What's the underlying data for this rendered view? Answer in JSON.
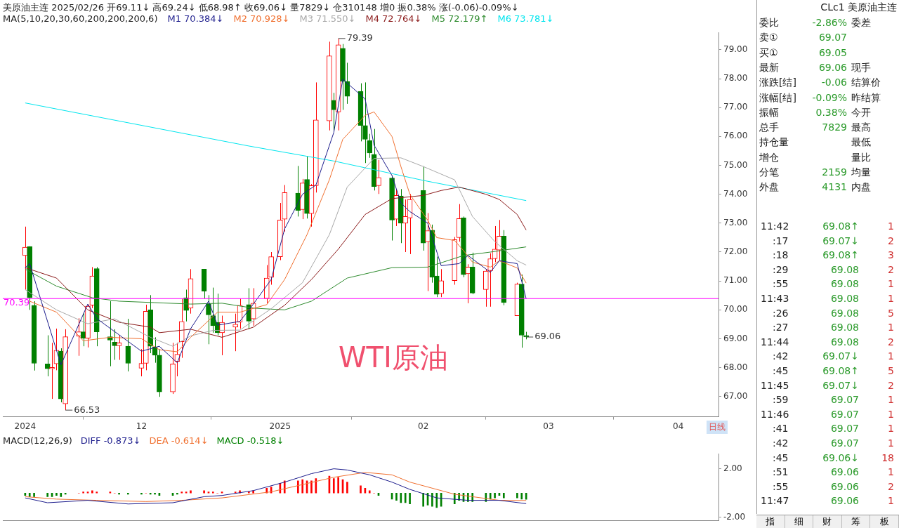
{
  "chart_data": [
    {
      "type": "candlestick",
      "title": "美原油主连 2025/02/26 开69.11↓ 高69.24↓ 低68.98↑ 收69.06↓ 量7829↓ 仓310148 增0 振0.38% 涨(-0.06)-0.09%↓",
      "legend_title": "MA(5,10,20,30,60,200,200,200,6)",
      "legend": "top left",
      "x": [
        "2024-11-06",
        "2024-11-07",
        "2024-11-08",
        "2024-11-11",
        "2024-11-12",
        "2024-11-13",
        "2024-11-14",
        "2024-11-15",
        "2024-11-18",
        "2024-11-19",
        "2024-11-20",
        "2024-11-21",
        "2024-11-22",
        "2024-11-25",
        "2024-11-26",
        "2024-11-27",
        "2024-11-29",
        "2024-12-02",
        "2024-12-03",
        "2024-12-04",
        "2024-12-05",
        "2024-12-06",
        "2024-12-09",
        "2024-12-10",
        "2024-12-11",
        "2024-12-12",
        "2024-12-13",
        "2024-12-16",
        "2024-12-17",
        "2024-12-18",
        "2024-12-19",
        "2024-12-20",
        "2024-12-23",
        "2024-12-24",
        "2024-12-26",
        "2024-12-27",
        "2024-12-30",
        "2024-12-31",
        "2025-01-02",
        "2025-01-03",
        "2025-01-06",
        "2025-01-07",
        "2025-01-08",
        "2025-01-09",
        "2025-01-10",
        "2025-01-13",
        "2025-01-14",
        "2025-01-15",
        "2025-01-16",
        "2025-01-17",
        "2025-01-20",
        "2025-01-21",
        "2025-01-22",
        "2025-01-23",
        "2025-01-24",
        "2025-01-27",
        "2025-01-28",
        "2025-01-29",
        "2025-01-30",
        "2025-01-31",
        "2025-02-03",
        "2025-02-04",
        "2025-02-05",
        "2025-02-06",
        "2025-02-07",
        "2025-02-10",
        "2025-02-11",
        "2025-02-12",
        "2025-02-13",
        "2025-02-14",
        "2025-02-17",
        "2025-02-18",
        "2025-02-19",
        "2025-02-20",
        "2025-02-21",
        "2025-02-24",
        "2025-02-25",
        "2025-02-26"
      ],
      "ohlc": [
        [
          71.88,
          72.88,
          70.7,
          72.17
        ],
        [
          72.19,
          72.2,
          70.0,
          70.42
        ],
        [
          70.16,
          70.3,
          67.9,
          68.15
        ],
        [
          68.13,
          69.12,
          67.7,
          67.96
        ],
        [
          67.96,
          68.86,
          66.92,
          68.01
        ],
        [
          68.13,
          69.35,
          67.91,
          68.6
        ],
        [
          68.57,
          68.67,
          66.8,
          66.92
        ],
        [
          66.75,
          69.33,
          66.53,
          69.07
        ],
        [
          69.09,
          69.71,
          68.41,
          69.24
        ],
        [
          69.24,
          69.92,
          68.74,
          69.02
        ],
        [
          69.02,
          70.18,
          68.7,
          70.13
        ],
        [
          70.16,
          71.48,
          70.06,
          71.17
        ],
        [
          71.43,
          71.48,
          68.74,
          69.24
        ],
        [
          69.07,
          70.3,
          68.05,
          68.95
        ],
        [
          68.88,
          69.33,
          68.27,
          68.76
        ],
        [
          68.76,
          69.12,
          68.27,
          68.86
        ],
        [
          68.74,
          69.69,
          67.87,
          68.15
        ],
        [
          67.98,
          68.64,
          67.7,
          68.15
        ],
        [
          68.15,
          70.18,
          67.91,
          69.95
        ],
        [
          70.0,
          70.51,
          68.5,
          68.74
        ],
        [
          68.72,
          69.05,
          68.17,
          68.43
        ],
        [
          68.43,
          68.64,
          66.99,
          67.16
        ],
        [
          67.16,
          68.86,
          67.09,
          68.13
        ],
        [
          68.22,
          68.86,
          67.7,
          68.46
        ],
        [
          68.9,
          70.39,
          68.34,
          69.6
        ],
        [
          70.42,
          70.7,
          69.6,
          69.98
        ],
        [
          70.06,
          71.41,
          69.87,
          71.08
        ],
        [
          71.41,
          71.41,
          70.39,
          70.65
        ],
        [
          70.21,
          70.51,
          68.81,
          69.83
        ],
        [
          69.8,
          70.77,
          69.21,
          69.45
        ],
        [
          69.57,
          70.56,
          69.12,
          69.21
        ],
        [
          69.21,
          69.8,
          68.43,
          69.57
        ],
        [
          69.4,
          69.87,
          68.57,
          69.5
        ],
        [
          69.57,
          70.39,
          69.35,
          70.16
        ],
        [
          70.18,
          70.75,
          69.33,
          69.61
        ],
        [
          69.69,
          70.75,
          69.45,
          70.23
        ],
        [
          70.39,
          71.55,
          70.23,
          71.1
        ],
        [
          71.13,
          72.0,
          70.87,
          71.84
        ],
        [
          71.84,
          73.7,
          71.72,
          73.11
        ],
        [
          73.14,
          74.32,
          72.71,
          74.06
        ],
        [
          74.04,
          74.98,
          73.23,
          73.44
        ],
        [
          73.47,
          74.53,
          73.14,
          74.39
        ],
        [
          74.51,
          75.31,
          73.16,
          73.33
        ],
        [
          73.33,
          74.35,
          72.88,
          74.3
        ],
        [
          74.3,
          77.87,
          74.06,
          76.57
        ],
        [
          76.54,
          79.28,
          76.21,
          78.79
        ],
        [
          77.25,
          77.51,
          76.21,
          76.92
        ],
        [
          76.85,
          79.39,
          76.21,
          79.17
        ],
        [
          79.05,
          79.2,
          76.92,
          77.91
        ],
        [
          77.91,
          78.55,
          77.13,
          77.39
        ],
        [
          77.56,
          77.84,
          75.83,
          76.38
        ],
        [
          76.38,
          77.87,
          75.08,
          75.9
        ],
        [
          75.86,
          76.09,
          75.26,
          75.43
        ],
        [
          75.38,
          76.26,
          74.13,
          74.27
        ],
        [
          74.3,
          75.19,
          74.01,
          74.58
        ],
        [
          74.56,
          74.65,
          72.4,
          73.11
        ],
        [
          73.14,
          74.18,
          72.9,
          73.96
        ],
        [
          73.94,
          74.18,
          72.31,
          73.0
        ],
        [
          73.0,
          73.82,
          72.0,
          73.23
        ],
        [
          73.18,
          74.01,
          71.93,
          73.82
        ],
        [
          74.13,
          74.97,
          72.05,
          72.31
        ],
        [
          72.36,
          73.35,
          70.65,
          72.74
        ],
        [
          72.76,
          72.95,
          70.94,
          71.13
        ],
        [
          71.17,
          71.84,
          70.44,
          70.54
        ],
        [
          70.56,
          71.41,
          70.44,
          71.01
        ],
        [
          71.01,
          72.52,
          70.87,
          72.43
        ],
        [
          72.5,
          73.66,
          72.36,
          73.16
        ],
        [
          73.18,
          73.23,
          71.13,
          71.22
        ],
        [
          71.25,
          71.58,
          70.23,
          71.48
        ],
        [
          71.48,
          71.98,
          70.54,
          70.58
        ],
        [
          70.7,
          71.41,
          70.11,
          71.34
        ],
        [
          71.36,
          71.96,
          70.11,
          71.77
        ],
        [
          71.77,
          72.9,
          71.65,
          72.1
        ],
        [
          72.07,
          73.11,
          71.72,
          72.55
        ],
        [
          72.55,
          72.76,
          70.16,
          70.25
        ],
        [
          69.8,
          70.94,
          69.8,
          70.89
        ],
        [
          70.89,
          71.22,
          68.69,
          69.12
        ],
        [
          69.11,
          69.24,
          68.98,
          69.06
        ]
      ],
      "colors": [
        "#ff0000",
        "#008000",
        "#008000",
        "#008000",
        "#ff0000",
        "#ff0000",
        "#008000",
        "#ff0000",
        "#ff0000",
        "#008000",
        "#ff0000",
        "#ff0000",
        "#008000",
        "#008000",
        "#008000",
        "#ff0000",
        "#008000",
        "#ff0000",
        "#ff0000",
        "#008000",
        "#008000",
        "#008000",
        "#ff0000",
        "#ff0000",
        "#ff0000",
        "#008000",
        "#ff0000",
        "#008000",
        "#008000",
        "#008000",
        "#008000",
        "#ff0000",
        "#ff0000",
        "#ff0000",
        "#008000",
        "#ff0000",
        "#ff0000",
        "#ff0000",
        "#ff0000",
        "#ff0000",
        "#008000",
        "#ff0000",
        "#008000",
        "#ff0000",
        "#ff0000",
        "#ff0000",
        "#008000",
        "#ff0000",
        "#008000",
        "#008000",
        "#008000",
        "#008000",
        "#008000",
        "#008000",
        "#ff0000",
        "#008000",
        "#ff0000",
        "#008000",
        "#ff0000",
        "#ff0000",
        "#008000",
        "#ff0000",
        "#008000",
        "#008000",
        "#ff0000",
        "#ff0000",
        "#ff0000",
        "#008000",
        "#ff0000",
        "#008000",
        "#ff0000",
        "#ff0000",
        "#ff0000",
        "#ff0000",
        "#008000",
        "#ff0000",
        "#008000",
        "#008000"
      ],
      "series": [
        {
          "name": "M1 70.384↓",
          "type": "line",
          "color": "#1c1c8c",
          "x": [
            "2024-11-06",
            "2024-11-07",
            "2024-11-14",
            "2024-11-20",
            "2024-11-22",
            "2024-12-02",
            "2024-12-06",
            "2024-12-10",
            "2024-12-13",
            "2024-12-17",
            "2024-12-19",
            "2024-12-24",
            "2024-12-27",
            "2024-12-31",
            "2025-01-03",
            "2025-01-07",
            "2025-01-10",
            "2025-01-14",
            "2025-01-16",
            "2025-01-21",
            "2025-01-23",
            "2025-01-27",
            "2025-01-29",
            "2025-01-31",
            "2025-02-04",
            "2025-02-07",
            "2025-02-11",
            "2025-02-13",
            "2025-02-18",
            "2025-02-20",
            "2025-02-24",
            "2025-02-26"
          ],
          "values": [
            71.46,
            71.6,
            68.1,
            70.2,
            69.7,
            68.57,
            68.74,
            68.17,
            69.35,
            70.3,
            69.47,
            69.6,
            70.2,
            71.05,
            72.8,
            74.0,
            74.32,
            76.14,
            77.98,
            77.3,
            75.7,
            74.65,
            73.7,
            73.4,
            73.0,
            71.53,
            71.6,
            71.88,
            71.3,
            71.7,
            71.6,
            70.384
          ]
        },
        {
          "name": "M2 70.928↓",
          "type": "line",
          "color": "#f07030",
          "x": [
            "2024-11-07",
            "2024-11-13",
            "2024-11-19",
            "2024-11-25",
            "2024-12-02",
            "2024-12-06",
            "2024-12-10",
            "2024-12-13",
            "2024-12-19",
            "2024-12-24",
            "2024-12-30",
            "2025-01-03",
            "2025-01-08",
            "2025-01-13",
            "2025-01-16",
            "2025-01-21",
            "2025-01-23",
            "2025-01-27",
            "2025-01-29",
            "2025-01-31",
            "2025-02-04",
            "2025-02-06",
            "2025-02-10",
            "2025-02-12",
            "2025-02-14",
            "2025-02-18",
            "2025-02-20",
            "2025-02-24",
            "2025-02-26"
          ],
          "values": [
            70.3,
            69.92,
            68.93,
            69.05,
            69.0,
            68.62,
            68.55,
            69.05,
            69.92,
            69.92,
            70.18,
            71.05,
            72.6,
            74.5,
            75.9,
            76.73,
            76.85,
            76.0,
            74.96,
            74.0,
            73.1,
            72.5,
            72.4,
            72.05,
            71.65,
            71.48,
            71.7,
            71.45,
            70.928
          ]
        },
        {
          "name": "M3 71.550↓",
          "type": "line",
          "color": "#a8a8a8",
          "x": [
            "2024-11-06",
            "2024-11-13",
            "2024-11-20",
            "2024-11-26",
            "2024-12-04",
            "2024-12-09",
            "2024-12-13",
            "2024-12-18",
            "2024-12-24",
            "2024-12-31",
            "2025-01-07",
            "2025-01-13",
            "2025-01-17",
            "2025-01-23",
            "2025-01-29",
            "2025-02-03",
            "2025-02-10",
            "2025-02-14",
            "2025-02-19",
            "2025-02-24",
            "2025-02-26"
          ],
          "values": [
            70.7,
            70.0,
            69.52,
            69.69,
            69.05,
            68.74,
            69.1,
            69.29,
            69.3,
            70.04,
            70.94,
            72.6,
            74.25,
            75.24,
            75.26,
            74.96,
            74.5,
            73.23,
            72.36,
            71.7,
            71.55
          ]
        },
        {
          "name": "M4 72.764↓",
          "type": "line",
          "color": "#8b1a1a",
          "x": [
            "2024-11-06",
            "2024-11-13",
            "2024-11-20",
            "2024-11-27",
            "2024-12-04",
            "2024-12-06",
            "2024-12-13",
            "2024-12-20",
            "2024-12-27",
            "2025-01-03",
            "2025-01-09",
            "2025-01-15",
            "2025-01-21",
            "2025-01-27",
            "2025-02-03",
            "2025-02-07",
            "2025-02-11",
            "2025-02-17",
            "2025-02-20",
            "2025-02-24",
            "2025-02-26"
          ],
          "values": [
            71.46,
            71.1,
            70.0,
            69.57,
            69.4,
            69.21,
            69.33,
            69.05,
            69.4,
            70.16,
            71.05,
            72.1,
            73.3,
            73.85,
            73.96,
            74.13,
            74.25,
            74.0,
            73.82,
            73.3,
            72.764
          ]
        },
        {
          "name": "M5 72.179↑",
          "type": "line",
          "color": "#2e8b2e",
          "x": [
            "2024-11-06",
            "2024-11-13",
            "2024-11-21",
            "2024-11-27",
            "2024-12-05",
            "2024-12-13",
            "2024-12-20",
            "2024-12-27",
            "2025-01-03",
            "2025-01-09",
            "2025-01-13",
            "2025-01-17",
            "2025-01-27",
            "2025-02-04",
            "2025-02-12",
            "2025-02-18",
            "2025-02-26"
          ],
          "values": [
            71.41,
            70.82,
            70.42,
            70.3,
            70.25,
            70.2,
            70.23,
            70.06,
            70.0,
            70.3,
            70.7,
            71.1,
            71.46,
            71.48,
            71.88,
            72.0,
            72.179
          ]
        },
        {
          "name": "M6 73.781↓",
          "type": "line",
          "color": "#00e5ee",
          "x": [
            "2024-11-06",
            "2024-12-26",
            "2025-01-14",
            "2025-02-03",
            "2025-02-26"
          ],
          "values": [
            77.16,
            75.67,
            75.15,
            74.48,
            73.781
          ]
        }
      ],
      "xlim": [
        "2024-11-01",
        "2025-04-10"
      ],
      "xticks": [
        {
          "value": "2024-11-06",
          "label": "2024"
        },
        {
          "value": "2024-12-02",
          "label": "12"
        },
        {
          "value": "2025-01-02",
          "label": "2025"
        },
        {
          "value": "2025-02-03",
          "label": "02"
        },
        {
          "value": "2025-03-03",
          "label": "03"
        },
        {
          "value": "2025-04-01",
          "label": "04"
        }
      ],
      "ylim": [
        66.3,
        79.6
      ],
      "yticks": [
        {
          "value": 67,
          "label": "67.00"
        },
        {
          "value": 68,
          "label": "68.00"
        },
        {
          "value": 69,
          "label": "69.00"
        },
        {
          "value": 70,
          "label": "70.00"
        },
        {
          "value": 71,
          "label": "71.00"
        },
        {
          "value": 72,
          "label": "72.00"
        },
        {
          "value": 73,
          "label": "73.00"
        },
        {
          "value": 74,
          "label": "74.00"
        },
        {
          "value": 75,
          "label": "75.00"
        },
        {
          "value": 76,
          "label": "76.00"
        },
        {
          "value": 77,
          "label": "77.00"
        },
        {
          "value": 78,
          "label": "78.00"
        },
        {
          "value": 79,
          "label": "79.00"
        }
      ],
      "ref_lines": [
        {
          "axis": "y",
          "value": 70.39,
          "label": "70.39",
          "color": "#ff00ff"
        }
      ],
      "annotations": [
        "WTI原油",
        "日线",
        {
          "text": "79.39",
          "x": "2025-01-15",
          "y": 79.39
        },
        {
          "text": "66.53",
          "x": "2024-11-15",
          "y": 66.53
        },
        {
          "text": "69.06",
          "x": "2025-02-26",
          "y": 69.06
        }
      ]
    },
    {
      "type": "bar",
      "title": "MACD(12,26,9)",
      "legend": "top left",
      "tick_labels": "y",
      "x": [
        "2024-11-06",
        "2024-11-07",
        "2024-11-08",
        "2024-11-11",
        "2024-11-12",
        "2024-11-13",
        "2024-11-14",
        "2024-11-15",
        "2024-11-18",
        "2024-11-19",
        "2024-11-20",
        "2024-11-21",
        "2024-11-22",
        "2024-11-25",
        "2024-11-26",
        "2024-11-27",
        "2024-11-29",
        "2024-12-02",
        "2024-12-03",
        "2024-12-04",
        "2024-12-05",
        "2024-12-06",
        "2024-12-09",
        "2024-12-10",
        "2024-12-11",
        "2024-12-12",
        "2024-12-13",
        "2024-12-16",
        "2024-12-17",
        "2024-12-18",
        "2024-12-19",
        "2024-12-20",
        "2024-12-23",
        "2024-12-24",
        "2024-12-26",
        "2024-12-27",
        "2024-12-30",
        "2024-12-31",
        "2025-01-02",
        "2025-01-03",
        "2025-01-06",
        "2025-01-07",
        "2025-01-08",
        "2025-01-09",
        "2025-01-10",
        "2025-01-13",
        "2025-01-14",
        "2025-01-15",
        "2025-01-16",
        "2025-01-17",
        "2025-01-20",
        "2025-01-21",
        "2025-01-22",
        "2025-01-23",
        "2025-01-24",
        "2025-01-27",
        "2025-01-28",
        "2025-01-29",
        "2025-01-30",
        "2025-01-31",
        "2025-02-03",
        "2025-02-04",
        "2025-02-05",
        "2025-02-06",
        "2025-02-07",
        "2025-02-10",
        "2025-02-11",
        "2025-02-12",
        "2025-02-13",
        "2025-02-14",
        "2025-02-17",
        "2025-02-18",
        "2025-02-19",
        "2025-02-20",
        "2025-02-21",
        "2025-02-24",
        "2025-02-25",
        "2025-02-26"
      ],
      "series": [
        {
          "name": "DIFF -0.873↓",
          "type": "line",
          "color": "#1c1c8c",
          "x": [
            "2024-11-06",
            "2024-11-11",
            "2024-11-20",
            "2024-11-29",
            "2024-12-09",
            "2024-12-16",
            "2024-12-20",
            "2024-12-27",
            "2025-01-03",
            "2025-01-09",
            "2025-01-14",
            "2025-01-17",
            "2025-01-22",
            "2025-01-27",
            "2025-01-31",
            "2025-02-06",
            "2025-02-13",
            "2025-02-20",
            "2025-02-26"
          ],
          "values": [
            -0.4,
            -0.8,
            -0.6,
            -0.9,
            -0.8,
            -0.3,
            -0.2,
            0.2,
            0.9,
            1.6,
            2.0,
            1.9,
            1.5,
            0.9,
            0.3,
            -0.4,
            -0.6,
            -0.6,
            -0.873
          ]
        },
        {
          "name": "DEA -0.614↓",
          "type": "line",
          "color": "#f07030",
          "x": [
            "2024-11-06",
            "2024-11-13",
            "2024-11-22",
            "2024-12-03",
            "2024-12-11",
            "2024-12-20",
            "2024-12-31",
            "2025-01-07",
            "2025-01-14",
            "2025-01-21",
            "2025-01-27",
            "2025-01-31",
            "2025-02-10",
            "2025-02-20",
            "2025-02-26"
          ],
          "values": [
            -0.3,
            -0.5,
            -0.6,
            -0.7,
            -0.6,
            -0.4,
            0.1,
            0.7,
            1.3,
            1.7,
            1.5,
            0.9,
            -0.1,
            -0.6,
            -0.614
          ]
        },
        {
          "name": "MACD -0.518↓",
          "type": "bar",
          "color": "#008000",
          "values": [
            -0.2,
            -0.3,
            -0.3,
            -0.3,
            -0.3,
            -0.2,
            -0.3,
            -0.1,
            0,
            0.1,
            0.1,
            0.2,
            0.1,
            0.1,
            0,
            -0.1,
            -0.1,
            -0.1,
            0,
            -0.1,
            -0.1,
            -0.2,
            -0.2,
            -0.1,
            0.1,
            0.1,
            0.2,
            0.2,
            0.1,
            0.1,
            0,
            0.1,
            0.1,
            0.2,
            0.1,
            0.2,
            0.4,
            0.5,
            0.8,
            1.0,
            1.0,
            1.1,
            1.0,
            1.0,
            1.2,
            1.4,
            1.2,
            1.3,
            1.1,
            0.9,
            0.6,
            0.4,
            0.2,
            0,
            -0.2,
            -0.5,
            -0.6,
            -0.8,
            -0.8,
            -0.9,
            -1.1,
            -1.0,
            -1.1,
            -1.2,
            -1.1,
            -0.9,
            -0.6,
            -0.7,
            -0.7,
            -0.7,
            -0.7,
            -0.5,
            -0.4,
            -0.2,
            -0.4,
            -0.4,
            -0.5,
            -0.518
          ],
          "colors": [
            "#008000",
            "#008000",
            "#008000",
            "#008000",
            "#008000",
            "#008000",
            "#008000",
            "#008000",
            "#ff0000",
            "#ff0000",
            "#ff0000",
            "#ff0000",
            "#ff0000",
            "#ff0000",
            "#ff0000",
            "#008000",
            "#008000",
            "#008000",
            "#ff0000",
            "#008000",
            "#008000",
            "#008000",
            "#008000",
            "#008000",
            "#ff0000",
            "#ff0000",
            "#ff0000",
            "#ff0000",
            "#ff0000",
            "#ff0000",
            "#ff0000",
            "#ff0000",
            "#ff0000",
            "#ff0000",
            "#ff0000",
            "#ff0000",
            "#ff0000",
            "#ff0000",
            "#ff0000",
            "#ff0000",
            "#ff0000",
            "#ff0000",
            "#ff0000",
            "#ff0000",
            "#ff0000",
            "#ff0000",
            "#ff0000",
            "#ff0000",
            "#ff0000",
            "#ff0000",
            "#ff0000",
            "#ff0000",
            "#ff0000",
            "#ff0000",
            "#008000",
            "#008000",
            "#008000",
            "#008000",
            "#008000",
            "#008000",
            "#008000",
            "#008000",
            "#008000",
            "#008000",
            "#008000",
            "#008000",
            "#008000",
            "#008000",
            "#008000",
            "#008000",
            "#008000",
            "#008000",
            "#008000",
            "#008000",
            "#008000",
            "#008000",
            "#008000",
            "#008000"
          ]
        }
      ],
      "xlim": [
        "2024-11-01",
        "2025-04-10"
      ],
      "ylim": [
        -2.29,
        3.24
      ],
      "yticks": [
        {
          "value": -2,
          "label": "-2.00"
        },
        {
          "value": 2,
          "label": "2.00"
        }
      ]
    },
    {
      "type": "other",
      "title": "CLc1 美原油主连",
      "annotations": [
        "委比",
        "-2.86%",
        "委差",
        "卖①",
        "69.07",
        null,
        "买①",
        "69.05",
        null,
        "最新",
        "69.06",
        "现手",
        "涨跌[结]",
        "-0.06",
        "结算价",
        "涨幅[结]",
        "-0.09%",
        "昨结算",
        "振幅",
        "0.38%",
        "今开",
        "总手",
        "7829",
        "最高",
        "持仓量",
        null,
        "最低",
        "增仓",
        null,
        "量比",
        "分笔",
        "2159",
        "均量",
        "外盘",
        "4131",
        "内盘",
        "11:42",
        "69.08↑",
        "1",
        ":17",
        "69.07↓",
        "2",
        ":18",
        "69.08↑",
        "3",
        ":29",
        "69.08",
        "2",
        ":55",
        "69.08",
        "1",
        "11:43",
        "69.08",
        "1",
        ":26",
        "69.08",
        "5",
        ":27",
        "69.08",
        "1",
        "11:44",
        "69.08",
        "2",
        ":42",
        "69.07↓",
        "1",
        ":45",
        "69.08↑",
        "5",
        "11:45",
        "69.07↓",
        "2",
        ":59",
        "69.07",
        "1",
        "11:46",
        "69.07",
        "1",
        ":41",
        "69.07",
        "1",
        ":42",
        "69.07",
        "1",
        ":45",
        "69.06↓",
        "18",
        ":51",
        "69.06",
        "1",
        ":55",
        "69.06",
        "2",
        "11:47",
        "69.06",
        "1"
      ]
    },
    {
      "type": "other",
      "annotations": [
        "指",
        "细",
        "财",
        "筹",
        "板"
      ]
    }
  ]
}
